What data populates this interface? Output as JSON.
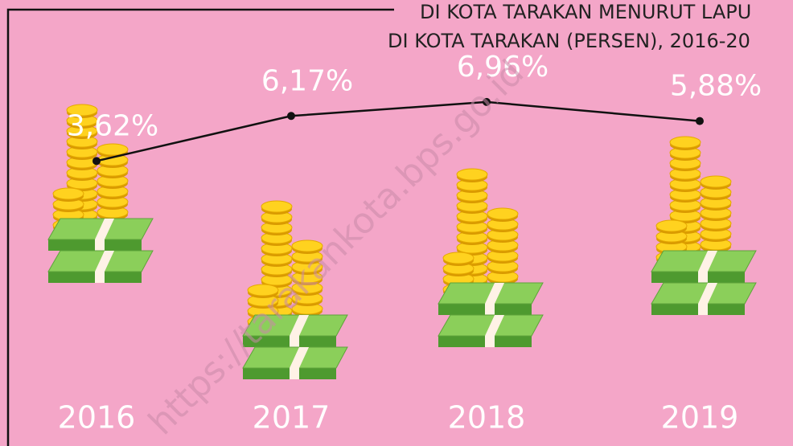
{
  "chart_data": {
    "type": "line",
    "title_lines": [
      "DI KOTA TARAKAN MENURUT LAPU",
      "DI KOTA TARAKAN (PERSEN), 2016-20"
    ],
    "watermark": "https://tarakankota.bps.go.id",
    "categories": [
      "2016",
      "2017",
      "2018",
      "2019"
    ],
    "values": [
      3.62,
      6.17,
      6.96,
      5.88
    ],
    "value_labels": [
      "3,62%",
      "6,17%",
      "6,96%",
      "5,88%"
    ],
    "color": "#111111"
  }
}
